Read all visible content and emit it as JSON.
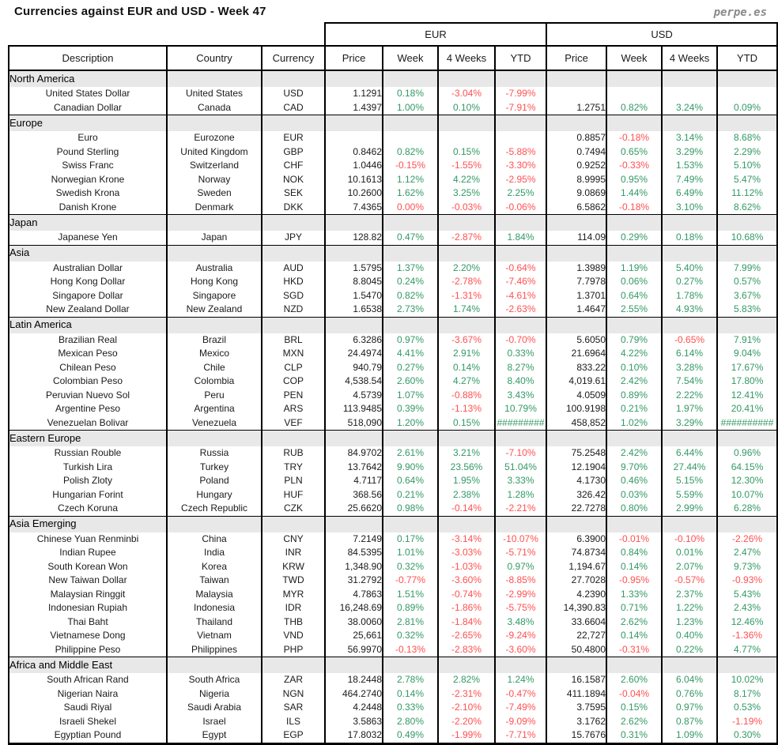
{
  "header": {
    "title": "Currencies against EUR and USD - Week 47",
    "logo": "perpe.es"
  },
  "colors": {
    "positive": "#339966",
    "negative": "#FF5050",
    "section_bg": "#E8E8E8"
  },
  "chart_data": {
    "type": "table",
    "group_headers": [
      "EUR",
      "USD"
    ],
    "columns": [
      "Description",
      "Country",
      "Currency",
      "Price",
      "Week",
      "4 Weeks",
      "YTD",
      "Price",
      "Week",
      "4 Weeks",
      "YTD"
    ],
    "sections": [
      {
        "name": "North America",
        "rows": [
          {
            "description": "United States Dollar",
            "country": "United States",
            "code": "USD",
            "eur": [
              "1.1291",
              "0.18%",
              "-3.04%",
              "-7.99%"
            ],
            "usd": [
              "",
              "",
              "",
              ""
            ]
          },
          {
            "description": "Canadian Dollar",
            "country": "Canada",
            "code": "CAD",
            "eur": [
              "1.4397",
              "1.00%",
              "0.10%",
              "-7.91%"
            ],
            "usd": [
              "1.2751",
              "0.82%",
              "3.24%",
              "0.09%"
            ]
          }
        ]
      },
      {
        "name": "Europe",
        "rows": [
          {
            "description": "Euro",
            "country": "Eurozone",
            "code": "EUR",
            "eur": [
              "",
              "",
              "",
              ""
            ],
            "usd": [
              "0.8857",
              "-0.18%",
              "3.14%",
              "8.68%"
            ]
          },
          {
            "description": "Pound Sterling",
            "country": "United Kingdom",
            "code": "GBP",
            "eur": [
              "0.8462",
              "0.82%",
              "0.15%",
              "-5.88%"
            ],
            "usd": [
              "0.7494",
              "0.65%",
              "3.29%",
              "2.29%"
            ]
          },
          {
            "description": "Swiss Franc",
            "country": "Switzerland",
            "code": "CHF",
            "eur": [
              "1.0446",
              "-0.15%",
              "-1.55%",
              "-3.30%"
            ],
            "usd": [
              "0.9252",
              "-0.33%",
              "1.53%",
              "5.10%"
            ]
          },
          {
            "description": "Norwegian Krone",
            "country": "Norway",
            "code": "NOK",
            "eur": [
              "10.1613",
              "1.12%",
              "4.22%",
              "-2.95%"
            ],
            "usd": [
              "8.9995",
              "0.95%",
              "7.49%",
              "5.47%"
            ]
          },
          {
            "description": "Swedish Krona",
            "country": "Sweden",
            "code": "SEK",
            "eur": [
              "10.2600",
              "1.62%",
              "3.25%",
              "2.25%"
            ],
            "usd": [
              "9.0869",
              "1.44%",
              "6.49%",
              "11.12%"
            ]
          },
          {
            "description": "Danish Krone",
            "country": "Denmark",
            "code": "DKK",
            "eur": [
              "7.4365",
              "0.00%",
              "-0.03%",
              "-0.06%"
            ],
            "usd": [
              "6.5862",
              "-0.18%",
              "3.10%",
              "8.62%"
            ]
          }
        ]
      },
      {
        "name": "Japan",
        "rows": [
          {
            "description": "Japanese Yen",
            "country": "Japan",
            "code": "JPY",
            "eur": [
              "128.82",
              "0.47%",
              "-2.87%",
              "1.84%"
            ],
            "usd": [
              "114.09",
              "0.29%",
              "0.18%",
              "10.68%"
            ]
          }
        ]
      },
      {
        "name": "Asia",
        "rows": [
          {
            "description": "Australian Dollar",
            "country": "Australia",
            "code": "AUD",
            "eur": [
              "1.5795",
              "1.37%",
              "2.20%",
              "-0.64%"
            ],
            "usd": [
              "1.3989",
              "1.19%",
              "5.40%",
              "7.99%"
            ]
          },
          {
            "description": "Hong Kong Dollar",
            "country": "Hong Kong",
            "code": "HKD",
            "eur": [
              "8.8045",
              "0.24%",
              "-2.78%",
              "-7.46%"
            ],
            "usd": [
              "7.7978",
              "0.06%",
              "0.27%",
              "0.57%"
            ]
          },
          {
            "description": "Singapore Dollar",
            "country": "Singapore",
            "code": "SGD",
            "eur": [
              "1.5470",
              "0.82%",
              "-1.31%",
              "-4.61%"
            ],
            "usd": [
              "1.3701",
              "0.64%",
              "1.78%",
              "3.67%"
            ]
          },
          {
            "description": "New Zealand Dollar",
            "country": "New Zealand",
            "code": "NZD",
            "eur": [
              "1.6538",
              "2.73%",
              "1.74%",
              "-2.63%"
            ],
            "usd": [
              "1.4647",
              "2.55%",
              "4.93%",
              "5.83%"
            ]
          }
        ]
      },
      {
        "name": "Latin America",
        "rows": [
          {
            "description": "Brazilian Real",
            "country": "Brazil",
            "code": "BRL",
            "eur": [
              "6.3286",
              "0.97%",
              "-3.67%",
              "-0.70%"
            ],
            "usd": [
              "5.6050",
              "0.79%",
              "-0.65%",
              "7.91%"
            ]
          },
          {
            "description": "Mexican Peso",
            "country": "Mexico",
            "code": "MXN",
            "eur": [
              "24.4974",
              "4.41%",
              "2.91%",
              "0.33%"
            ],
            "usd": [
              "21.6964",
              "4.22%",
              "6.14%",
              "9.04%"
            ]
          },
          {
            "description": "Chilean Peso",
            "country": "Chile",
            "code": "CLP",
            "eur": [
              "940.79",
              "0.27%",
              "0.14%",
              "8.27%"
            ],
            "usd": [
              "833.22",
              "0.10%",
              "3.28%",
              "17.67%"
            ]
          },
          {
            "description": "Colombian Peso",
            "country": "Colombia",
            "code": "COP",
            "eur": [
              "4,538.54",
              "2.60%",
              "4.27%",
              "8.40%"
            ],
            "usd": [
              "4,019.61",
              "2.42%",
              "7.54%",
              "17.80%"
            ]
          },
          {
            "description": "Peruvian Nuevo Sol",
            "country": "Peru",
            "code": "PEN",
            "eur": [
              "4.5739",
              "1.07%",
              "-0.88%",
              "3.43%"
            ],
            "usd": [
              "4.0509",
              "0.89%",
              "2.22%",
              "12.41%"
            ]
          },
          {
            "description": "Argentine Peso",
            "country": "Argentina",
            "code": "ARS",
            "eur": [
              "113.9485",
              "0.39%",
              "-1.13%",
              "10.79%"
            ],
            "usd": [
              "100.9198",
              "0.21%",
              "1.97%",
              "20.41%"
            ]
          },
          {
            "description": "Venezuelan Bolivar",
            "country": "Venezuela",
            "code": "VEF",
            "eur": [
              "518,090",
              "1.20%",
              "0.15%",
              "#########"
            ],
            "usd": [
              "458,852",
              "1.02%",
              "3.29%",
              "##########"
            ]
          }
        ]
      },
      {
        "name": "Eastern Europe",
        "rows": [
          {
            "description": "Russian Rouble",
            "country": "Russia",
            "code": "RUB",
            "eur": [
              "84.9702",
              "2.61%",
              "3.21%",
              "-7.10%"
            ],
            "usd": [
              "75.2548",
              "2.42%",
              "6.44%",
              "0.96%"
            ]
          },
          {
            "description": "Turkish Lira",
            "country": "Turkey",
            "code": "TRY",
            "eur": [
              "13.7642",
              "9.90%",
              "23.56%",
              "51.04%"
            ],
            "usd": [
              "12.1904",
              "9.70%",
              "27.44%",
              "64.15%"
            ]
          },
          {
            "description": "Polish Zloty",
            "country": "Poland",
            "code": "PLN",
            "eur": [
              "4.7117",
              "0.64%",
              "1.95%",
              "3.33%"
            ],
            "usd": [
              "4.1730",
              "0.46%",
              "5.15%",
              "12.30%"
            ]
          },
          {
            "description": "Hungarian Forint",
            "country": "Hungary",
            "code": "HUF",
            "eur": [
              "368.56",
              "0.21%",
              "2.38%",
              "1.28%"
            ],
            "usd": [
              "326.42",
              "0.03%",
              "5.59%",
              "10.07%"
            ]
          },
          {
            "description": "Czech Koruna",
            "country": "Czech Republic",
            "code": "CZK",
            "eur": [
              "25.6620",
              "0.98%",
              "-0.14%",
              "-2.21%"
            ],
            "usd": [
              "22.7278",
              "0.80%",
              "2.99%",
              "6.28%"
            ]
          }
        ]
      },
      {
        "name": "Asia Emerging",
        "rows": [
          {
            "description": "Chinese Yuan Renminbi",
            "country": "China",
            "code": "CNY",
            "eur": [
              "7.2149",
              "0.17%",
              "-3.14%",
              "-10.07%"
            ],
            "usd": [
              "6.3900",
              "-0.01%",
              "-0.10%",
              "-2.26%"
            ]
          },
          {
            "description": "Indian Rupee",
            "country": "India",
            "code": "INR",
            "eur": [
              "84.5395",
              "1.01%",
              "-3.03%",
              "-5.71%"
            ],
            "usd": [
              "74.8734",
              "0.84%",
              "0.01%",
              "2.47%"
            ]
          },
          {
            "description": "South Korean Won",
            "country": "Korea",
            "code": "KRW",
            "eur": [
              "1,348.90",
              "0.32%",
              "-1.03%",
              "0.97%"
            ],
            "usd": [
              "1,194.67",
              "0.14%",
              "2.07%",
              "9.73%"
            ]
          },
          {
            "description": "New Taiwan Dollar",
            "country": "Taiwan",
            "code": "TWD",
            "eur": [
              "31.2792",
              "-0.77%",
              "-3.60%",
              "-8.85%"
            ],
            "usd": [
              "27.7028",
              "-0.95%",
              "-0.57%",
              "-0.93%"
            ]
          },
          {
            "description": "Malaysian Ringgit",
            "country": "Malaysia",
            "code": "MYR",
            "eur": [
              "4.7863",
              "1.51%",
              "-0.74%",
              "-2.99%"
            ],
            "usd": [
              "4.2390",
              "1.33%",
              "2.37%",
              "5.43%"
            ]
          },
          {
            "description": "Indonesian Rupiah",
            "country": "Indonesia",
            "code": "IDR",
            "eur": [
              "16,248.69",
              "0.89%",
              "-1.86%",
              "-5.75%"
            ],
            "usd": [
              "14,390.83",
              "0.71%",
              "1.22%",
              "2.43%"
            ]
          },
          {
            "description": "Thai Baht",
            "country": "Thailand",
            "code": "THB",
            "eur": [
              "38.0060",
              "2.81%",
              "-1.84%",
              "3.48%"
            ],
            "usd": [
              "33.6604",
              "2.62%",
              "1.23%",
              "12.46%"
            ]
          },
          {
            "description": "Vietnamese Dong",
            "country": "Vietnam",
            "code": "VND",
            "eur": [
              "25,661",
              "0.32%",
              "-2.65%",
              "-9.24%"
            ],
            "usd": [
              "22,727",
              "0.14%",
              "0.40%",
              "-1.36%"
            ]
          },
          {
            "description": "Philippine Peso",
            "country": "Philippines",
            "code": "PHP",
            "eur": [
              "56.9970",
              "-0.13%",
              "-2.83%",
              "-3.60%"
            ],
            "usd": [
              "50.4800",
              "-0.31%",
              "0.22%",
              "4.77%"
            ]
          }
        ]
      },
      {
        "name": "Africa and Middle East",
        "rows": [
          {
            "description": "South African Rand",
            "country": "South Africa",
            "code": "ZAR",
            "eur": [
              "18.2448",
              "2.78%",
              "2.82%",
              "1.24%"
            ],
            "usd": [
              "16.1587",
              "2.60%",
              "6.04%",
              "10.02%"
            ]
          },
          {
            "description": "Nigerian Naira",
            "country": "Nigeria",
            "code": "NGN",
            "eur": [
              "464.2740",
              "0.14%",
              "-2.31%",
              "-0.47%"
            ],
            "usd": [
              "411.1894",
              "-0.04%",
              "0.76%",
              "8.17%"
            ]
          },
          {
            "description": "Saudi Riyal",
            "country": "Saudi Arabia",
            "code": "SAR",
            "eur": [
              "4.2448",
              "0.33%",
              "-2.10%",
              "-7.49%"
            ],
            "usd": [
              "3.7595",
              "0.15%",
              "0.97%",
              "0.53%"
            ]
          },
          {
            "description": "Israeli Shekel",
            "country": "Israel",
            "code": "ILS",
            "eur": [
              "3.5863",
              "2.80%",
              "-2.20%",
              "-9.09%"
            ],
            "usd": [
              "3.1762",
              "2.62%",
              "0.87%",
              "-1.19%"
            ]
          },
          {
            "description": "Egyptian Pound",
            "country": "Egypt",
            "code": "EGP",
            "eur": [
              "17.8032",
              "0.49%",
              "-1.99%",
              "-7.71%"
            ],
            "usd": [
              "15.7676",
              "0.31%",
              "1.09%",
              "0.30%"
            ]
          }
        ]
      }
    ]
  }
}
